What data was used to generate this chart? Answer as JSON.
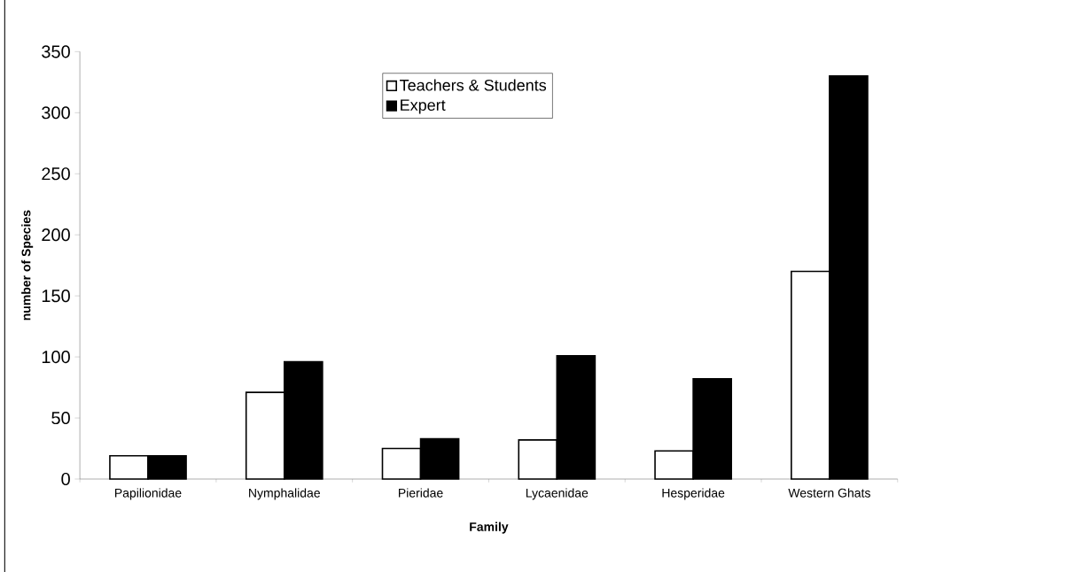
{
  "chart_data": {
    "type": "bar",
    "xlabel": "Family",
    "ylabel": "number of Species",
    "categories": [
      "Papilionidae",
      "Nymphalidae",
      "Pieridae",
      "Lycaenidae",
      "Hesperidae",
      "Western Ghats"
    ],
    "series": [
      {
        "name": "Teachers & Students",
        "color": "#ffffff",
        "values": [
          19,
          71,
          25,
          32,
          23,
          170
        ]
      },
      {
        "name": "Expert",
        "color": "#000000",
        "values": [
          19,
          96,
          33,
          101,
          82,
          330
        ]
      }
    ],
    "ylim": [
      0,
      350
    ],
    "yticks": [
      0,
      50,
      100,
      150,
      200,
      250,
      300,
      350
    ],
    "grid": false,
    "legend": "top"
  }
}
